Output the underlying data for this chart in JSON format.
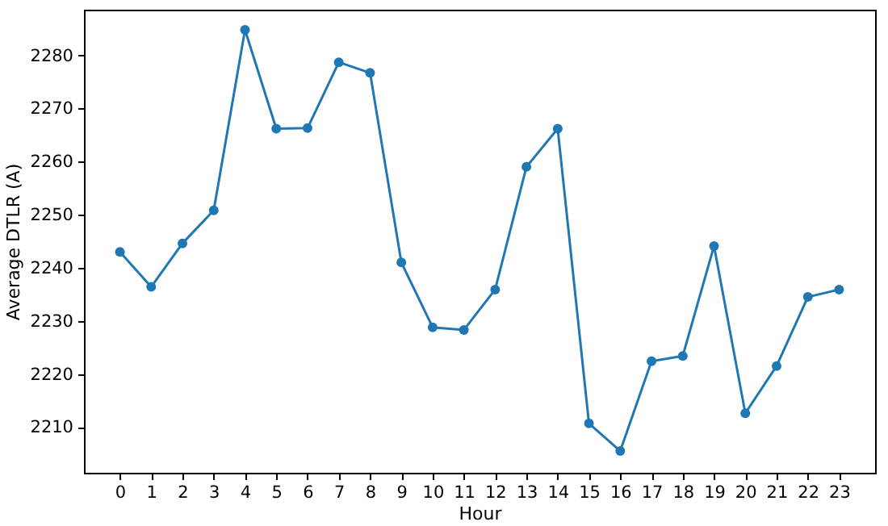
{
  "chart_data": {
    "type": "line",
    "xlabel": "Hour",
    "ylabel": "Average DTLR (A)",
    "x": [
      0,
      1,
      2,
      3,
      4,
      5,
      6,
      7,
      8,
      9,
      10,
      11,
      12,
      13,
      14,
      15,
      16,
      17,
      18,
      19,
      20,
      21,
      22,
      23
    ],
    "series": [
      {
        "color": "#1f77b4",
        "values": [
          2243.0,
          2236.4,
          2244.6,
          2250.8,
          2284.8,
          2266.2,
          2266.3,
          2278.7,
          2276.7,
          2241.0,
          2228.8,
          2228.3,
          2235.9,
          2259.0,
          2266.2,
          2210.7,
          2205.5,
          2222.4,
          2223.4,
          2244.1,
          2212.6,
          2221.5,
          2234.5,
          2235.9
        ]
      }
    ],
    "xlim": [
      -1.15,
      24.15
    ],
    "xticks": [
      0,
      1,
      2,
      3,
      4,
      5,
      6,
      7,
      8,
      9,
      10,
      11,
      12,
      13,
      14,
      15,
      16,
      17,
      18,
      19,
      20,
      21,
      22,
      23
    ],
    "ylim": [
      2201.4,
      2288.6
    ],
    "yticks": [
      2210,
      2220,
      2230,
      2240,
      2250,
      2260,
      2270,
      2280
    ],
    "marker": "circle",
    "line_style": "solid",
    "grid": false
  }
}
